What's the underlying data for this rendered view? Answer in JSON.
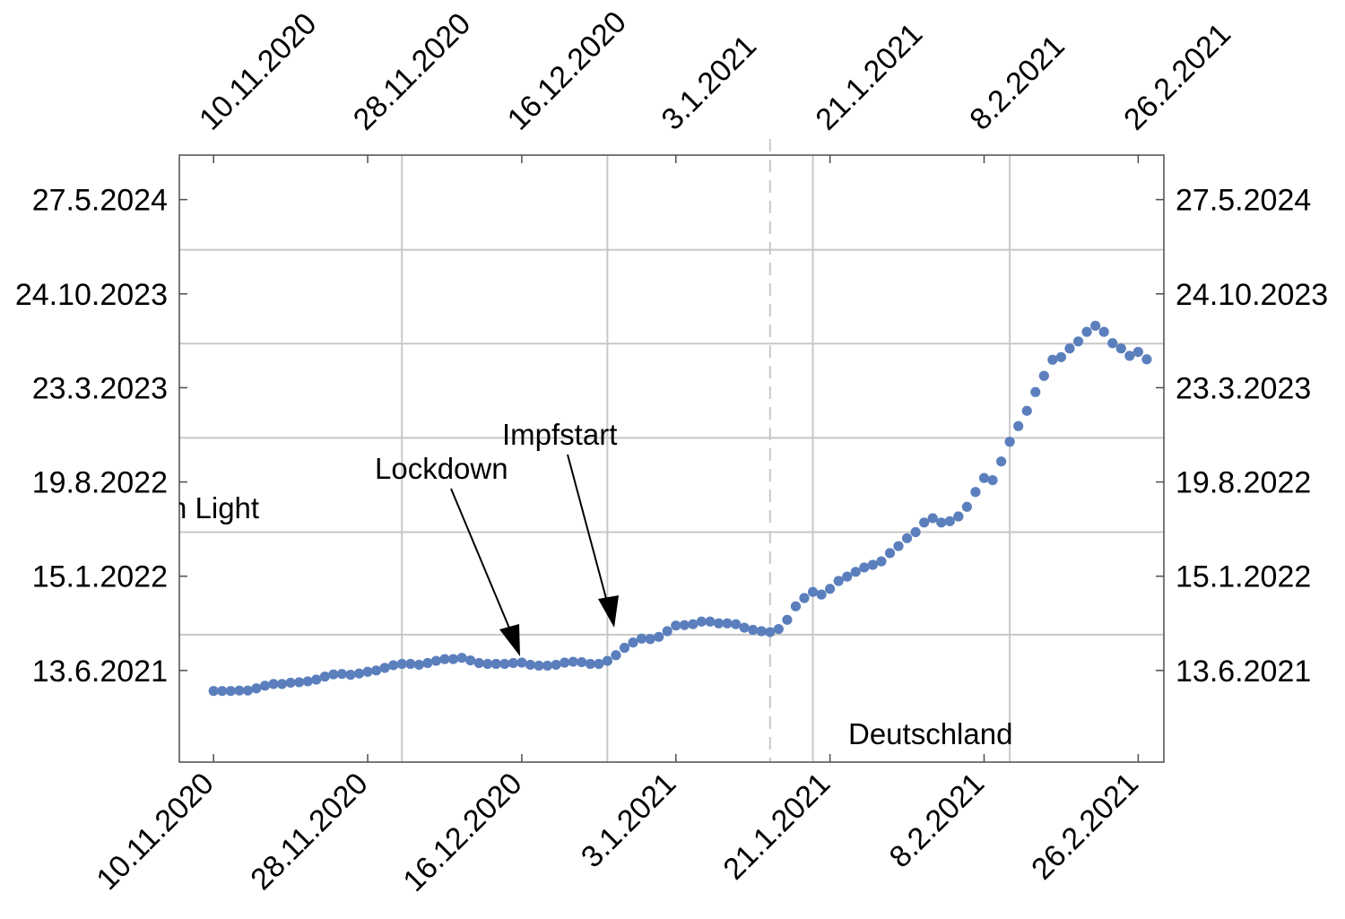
{
  "chart_data": {
    "type": "scatter",
    "title": "",
    "x_axis": {
      "kind": "date",
      "range": [
        "2020-11-06",
        "2021-03-01"
      ],
      "ticks": [
        {
          "date": "2020-11-10",
          "label": "10.11.2020"
        },
        {
          "date": "2020-11-28",
          "label": "28.11.2020"
        },
        {
          "date": "2020-12-16",
          "label": "16.12.2020"
        },
        {
          "date": "2021-01-03",
          "label": "3.1.2021"
        },
        {
          "date": "2021-01-21",
          "label": "21.1.2021"
        },
        {
          "date": "2021-02-08",
          "label": "8.2.2021"
        },
        {
          "date": "2021-02-26",
          "label": "26.2.2021"
        }
      ],
      "gridlines": [
        "2020-12-02",
        "2020-12-26",
        "2021-01-19",
        "2021-02-11"
      ]
    },
    "y_axis": {
      "kind": "date",
      "range": [
        "2020-11-15",
        "2024-09-06"
      ],
      "ticks": [
        {
          "date": "2021-06-13",
          "label": "13.6.2021"
        },
        {
          "date": "2022-01-15",
          "label": "15.1.2022"
        },
        {
          "date": "2022-08-19",
          "label": "19.8.2022"
        },
        {
          "date": "2023-03-23",
          "label": "23.3.2023"
        },
        {
          "date": "2023-10-24",
          "label": "24.10.2023"
        },
        {
          "date": "2024-05-27",
          "label": "27.5.2024"
        }
      ],
      "gridlines": [
        "2021-09-03",
        "2022-04-26",
        "2022-11-28",
        "2023-07-02",
        "2024-02-02"
      ]
    },
    "series": [
      {
        "color": "#5b7fbd",
        "points": [
          [
            "2020-11-10",
            "2021-04-27"
          ],
          [
            "2020-11-11",
            "2021-04-27"
          ],
          [
            "2020-11-12",
            "2021-04-27"
          ],
          [
            "2020-11-13",
            "2021-04-28"
          ],
          [
            "2020-11-14",
            "2021-04-28"
          ],
          [
            "2020-11-15",
            "2021-05-03"
          ],
          [
            "2020-11-16",
            "2021-05-09"
          ],
          [
            "2020-11-17",
            "2021-05-13"
          ],
          [
            "2020-11-18",
            "2021-05-13"
          ],
          [
            "2020-11-19",
            "2021-05-16"
          ],
          [
            "2020-11-20",
            "2021-05-17"
          ],
          [
            "2020-11-21",
            "2021-05-19"
          ],
          [
            "2020-11-22",
            "2021-05-23"
          ],
          [
            "2020-11-23",
            "2021-05-30"
          ],
          [
            "2020-11-24",
            "2021-06-04"
          ],
          [
            "2020-11-25",
            "2021-06-05"
          ],
          [
            "2020-11-26",
            "2021-06-03"
          ],
          [
            "2020-11-27",
            "2021-06-06"
          ],
          [
            "2020-11-28",
            "2021-06-10"
          ],
          [
            "2020-11-29",
            "2021-06-13"
          ],
          [
            "2020-11-30",
            "2021-06-19"
          ],
          [
            "2020-12-01",
            "2021-06-25"
          ],
          [
            "2020-12-02",
            "2021-06-28"
          ],
          [
            "2020-12-03",
            "2021-06-28"
          ],
          [
            "2020-12-04",
            "2021-06-26"
          ],
          [
            "2020-12-05",
            "2021-06-30"
          ],
          [
            "2020-12-06",
            "2021-07-05"
          ],
          [
            "2020-12-07",
            "2021-07-09"
          ],
          [
            "2020-12-08",
            "2021-07-09"
          ],
          [
            "2020-12-09",
            "2021-07-12"
          ],
          [
            "2020-12-10",
            "2021-07-06"
          ],
          [
            "2020-12-11",
            "2021-06-30"
          ],
          [
            "2020-12-12",
            "2021-06-28"
          ],
          [
            "2020-12-13",
            "2021-06-28"
          ],
          [
            "2020-12-14",
            "2021-06-28"
          ],
          [
            "2020-12-15",
            "2021-06-30"
          ],
          [
            "2020-12-16",
            "2021-07-01"
          ],
          [
            "2020-12-17",
            "2021-06-26"
          ],
          [
            "2020-12-18",
            "2021-06-24"
          ],
          [
            "2020-12-19",
            "2021-06-24"
          ],
          [
            "2020-12-20",
            "2021-06-26"
          ],
          [
            "2020-12-21",
            "2021-07-01"
          ],
          [
            "2020-12-22",
            "2021-07-03"
          ],
          [
            "2020-12-23",
            "2021-07-02"
          ],
          [
            "2020-12-24",
            "2021-06-28"
          ],
          [
            "2020-12-25",
            "2021-06-28"
          ],
          [
            "2020-12-26",
            "2021-07-05"
          ],
          [
            "2020-12-27",
            "2021-07-18"
          ],
          [
            "2020-12-28",
            "2021-08-04"
          ],
          [
            "2020-12-29",
            "2021-08-16"
          ],
          [
            "2020-12-30",
            "2021-08-25"
          ],
          [
            "2020-12-31",
            "2021-08-24"
          ],
          [
            "2021-01-01",
            "2021-08-29"
          ],
          [
            "2021-01-02",
            "2021-09-11"
          ],
          [
            "2021-01-03",
            "2021-09-24"
          ],
          [
            "2021-01-04",
            "2021-09-25"
          ],
          [
            "2021-01-05",
            "2021-09-27"
          ],
          [
            "2021-01-06",
            "2021-10-03"
          ],
          [
            "2021-01-07",
            "2021-10-03"
          ],
          [
            "2021-01-08",
            "2021-09-29"
          ],
          [
            "2021-01-09",
            "2021-09-29"
          ],
          [
            "2021-01-10",
            "2021-09-27"
          ],
          [
            "2021-01-11",
            "2021-09-19"
          ],
          [
            "2021-01-12",
            "2021-09-14"
          ],
          [
            "2021-01-13",
            "2021-09-11"
          ],
          [
            "2021-01-14",
            "2021-09-09"
          ],
          [
            "2021-01-15",
            "2021-09-16"
          ],
          [
            "2021-01-16",
            "2021-10-07"
          ],
          [
            "2021-01-17",
            "2021-11-07"
          ],
          [
            "2021-01-18",
            "2021-11-26"
          ],
          [
            "2021-01-19",
            "2021-12-10"
          ],
          [
            "2021-01-20",
            "2021-12-04"
          ],
          [
            "2021-01-21",
            "2021-12-17"
          ],
          [
            "2021-01-22",
            "2022-01-04"
          ],
          [
            "2021-01-23",
            "2022-01-14"
          ],
          [
            "2021-01-24",
            "2022-01-25"
          ],
          [
            "2021-01-25",
            "2022-02-04"
          ],
          [
            "2021-01-26",
            "2022-02-10"
          ],
          [
            "2021-01-27",
            "2022-02-18"
          ],
          [
            "2021-01-28",
            "2022-03-09"
          ],
          [
            "2021-01-29",
            "2022-03-25"
          ],
          [
            "2021-01-30",
            "2022-04-12"
          ],
          [
            "2021-01-31",
            "2022-04-26"
          ],
          [
            "2021-02-01",
            "2022-05-18"
          ],
          [
            "2021-02-02",
            "2022-05-28"
          ],
          [
            "2021-02-03",
            "2022-05-18"
          ],
          [
            "2021-02-04",
            "2022-05-21"
          ],
          [
            "2021-02-05",
            "2022-06-01"
          ],
          [
            "2021-02-06",
            "2022-06-23"
          ],
          [
            "2021-02-07",
            "2022-07-27"
          ],
          [
            "2021-02-08",
            "2022-08-28"
          ],
          [
            "2021-02-09",
            "2022-08-23"
          ],
          [
            "2021-02-10",
            "2022-10-05"
          ],
          [
            "2021-02-11",
            "2022-11-19"
          ],
          [
            "2021-02-12",
            "2022-12-25"
          ],
          [
            "2021-02-13",
            "2023-01-29"
          ],
          [
            "2021-02-14",
            "2023-03-13"
          ],
          [
            "2021-02-15",
            "2023-04-19"
          ],
          [
            "2021-02-16",
            "2023-05-26"
          ],
          [
            "2021-02-17",
            "2023-06-01"
          ],
          [
            "2021-02-18",
            "2023-06-21"
          ],
          [
            "2021-02-19",
            "2023-07-07"
          ],
          [
            "2021-02-20",
            "2023-07-29"
          ],
          [
            "2021-02-21",
            "2023-08-12"
          ],
          [
            "2021-02-22",
            "2023-07-29"
          ],
          [
            "2021-02-23",
            "2023-07-03"
          ],
          [
            "2021-02-24",
            "2023-06-21"
          ],
          [
            "2021-02-25",
            "2023-06-04"
          ],
          [
            "2021-02-26",
            "2023-06-13"
          ],
          [
            "2021-02-27",
            "2023-05-27"
          ]
        ]
      }
    ],
    "reference_line": {
      "date": "2021-01-14",
      "style": "dashed"
    },
    "annotations": [
      {
        "text": "Lockdown"
      },
      {
        "text": "Impfstart"
      },
      {
        "text": "Deutschland"
      },
      {
        "text": "n Light"
      }
    ]
  }
}
